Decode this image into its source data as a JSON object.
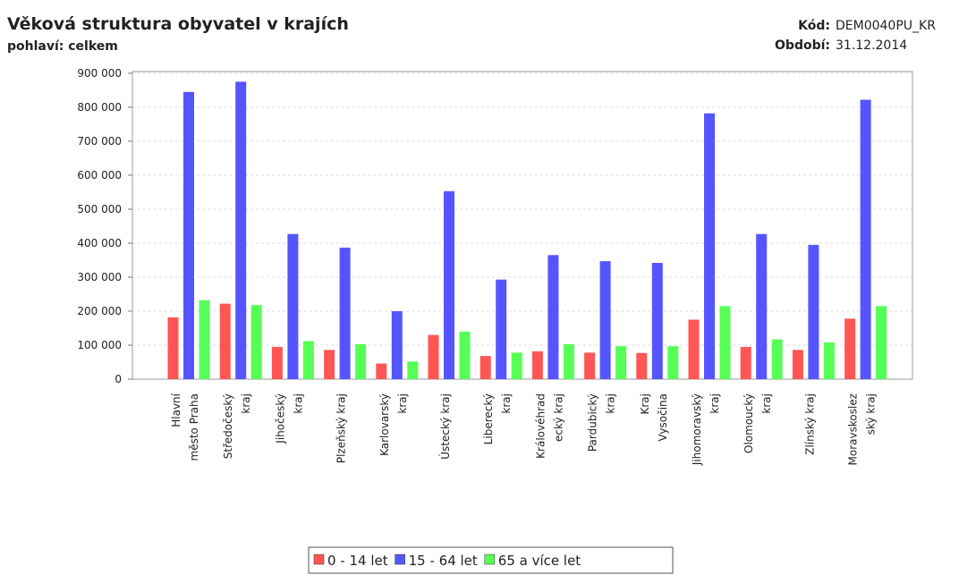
{
  "chart_data": {
    "type": "bar",
    "title": "Věková struktura obyvatel v krajích",
    "subtitle": "pohlaví: celkem",
    "code_label": "Kód:",
    "code": "DEM0040PU_KR",
    "period_label": "Období:",
    "period": "31.12.2014",
    "categories": [
      [
        "Hlavní",
        "město Praha"
      ],
      [
        "Středočeský",
        "kraj"
      ],
      [
        "Jihočeský",
        "kraj"
      ],
      [
        "Plzeňský kraj"
      ],
      [
        "Karlovarský",
        "kraj"
      ],
      [
        "Ústecký kraj"
      ],
      [
        "Liberecký",
        "kraj"
      ],
      [
        "Královéhrad",
        "ecký kraj"
      ],
      [
        "Pardubický",
        "kraj"
      ],
      [
        "Kraj",
        "Vysočina"
      ],
      [
        "Jihomoravský",
        "kraj"
      ],
      [
        "Olomoucký",
        "kraj"
      ],
      [
        "Zlínský kraj"
      ],
      [
        "Moravskoslez",
        "ský kraj"
      ]
    ],
    "series": [
      {
        "name": "0 - 14 let",
        "color": "#ff5555",
        "values": [
          182000,
          222000,
          95000,
          86000,
          46000,
          130000,
          68000,
          82000,
          78000,
          77000,
          175000,
          95000,
          86000,
          178000
        ]
      },
      {
        "name": "15 - 64 let",
        "color": "#5555ff",
        "values": [
          845000,
          875000,
          427000,
          387000,
          200000,
          553000,
          293000,
          365000,
          347000,
          342000,
          782000,
          427000,
          395000,
          822000
        ]
      },
      {
        "name": "65 a více let",
        "color": "#55ff55",
        "values": [
          232000,
          218000,
          112000,
          103000,
          52000,
          140000,
          78000,
          103000,
          97000,
          97000,
          215000,
          117000,
          108000,
          215000
        ]
      }
    ],
    "ylim": [
      0,
      905000
    ],
    "yticks": [
      0,
      {
        "value": 100000,
        "label": "100 000"
      },
      {
        "value": 200000,
        "label": "200 000"
      },
      {
        "value": 300000,
        "label": "300 000"
      },
      {
        "value": 400000,
        "label": "400 000"
      },
      {
        "value": 500000,
        "label": "500 000"
      },
      {
        "value": 600000,
        "label": "600 000"
      },
      {
        "value": 700000,
        "label": "700 000"
      },
      {
        "value": 800000,
        "label": "800 000"
      },
      {
        "value": 900000,
        "label": "900 000"
      }
    ],
    "grid": true,
    "legend": "bottom"
  }
}
